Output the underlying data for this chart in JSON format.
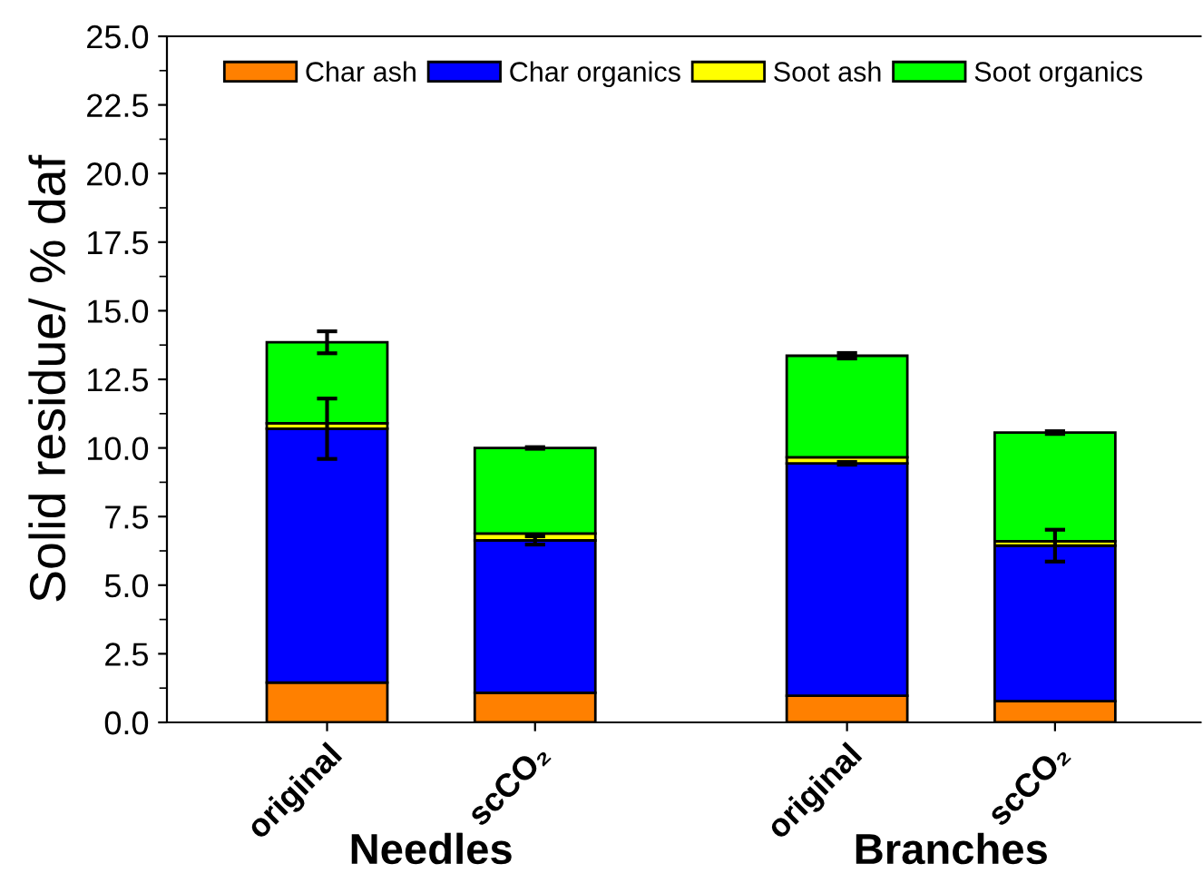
{
  "chart_data": {
    "type": "bar",
    "stacked": true,
    "ylabel": "Solid residue/ % daf",
    "categories": [
      "original",
      "scCO₂",
      "original",
      "scCO₂"
    ],
    "series": [
      {
        "name": "Char ash",
        "color": "#ff8000",
        "values": [
          1.45,
          1.08,
          0.97,
          0.77
        ]
      },
      {
        "name": "Char organics",
        "color": "#0000ff",
        "values": [
          9.25,
          5.55,
          8.47,
          5.67
        ],
        "errors": [
          1.1,
          0.15,
          0.05,
          0.58
        ]
      },
      {
        "name": "Soot ash",
        "color": "#ffff00",
        "values": [
          0.2,
          0.25,
          0.22,
          0.16
        ]
      },
      {
        "name": "Soot organics",
        "color": "#00ff00",
        "values": [
          2.95,
          3.12,
          3.7,
          3.96
        ],
        "errors": [
          0.4,
          0.03,
          0.1,
          0.05
        ]
      }
    ],
    "ylim": [
      0,
      25
    ],
    "yticks": [
      {
        "value": 0,
        "label": "0.0"
      },
      {
        "value": 2.5,
        "label": "2.5"
      },
      {
        "value": 5,
        "label": "5.0"
      },
      {
        "value": 7.5,
        "label": "7.5"
      },
      {
        "value": 10,
        "label": "10.0"
      },
      {
        "value": 12.5,
        "label": "12.5"
      },
      {
        "value": 15,
        "label": "15.0"
      },
      {
        "value": 17.5,
        "label": "17.5"
      },
      {
        "value": 20,
        "label": "20.0"
      },
      {
        "value": 22.5,
        "label": "22.5"
      },
      {
        "value": 25,
        "label": "25.0"
      }
    ],
    "annotations": [
      "Needles",
      "Branches"
    ],
    "legend": "top",
    "grid": false
  }
}
